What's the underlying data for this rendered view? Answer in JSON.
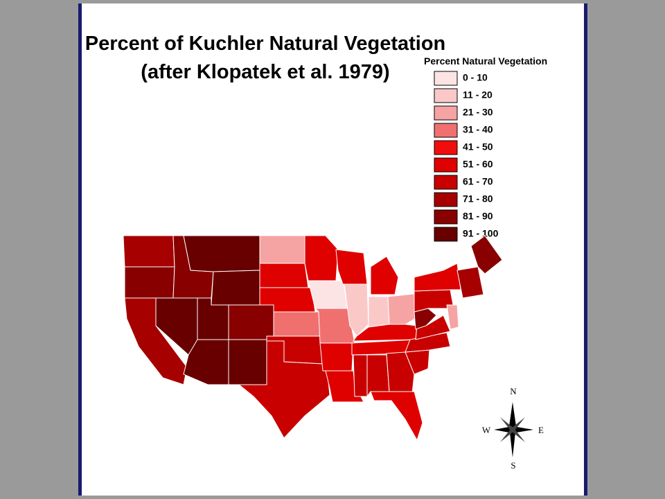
{
  "title": {
    "line1": "Percent of Kuchler Natural Vegetation",
    "line2": "(after Klopatek et al. 1979)"
  },
  "legend": {
    "title": "Percent Natural Vegetation",
    "items": [
      {
        "label": "0 - 10",
        "color": "#fde4e4"
      },
      {
        "label": "11 - 20",
        "color": "#fbc8c8"
      },
      {
        "label": "21 - 30",
        "color": "#f6a3a3"
      },
      {
        "label": "31 - 40",
        "color": "#f07070"
      },
      {
        "label": "41 - 50",
        "color": "#f20d0d"
      },
      {
        "label": "51 - 60",
        "color": "#df0000"
      },
      {
        "label": "61 - 70",
        "color": "#c80000"
      },
      {
        "label": "71 - 80",
        "color": "#a60000"
      },
      {
        "label": "81 - 90",
        "color": "#880000"
      },
      {
        "label": "91 - 100",
        "color": "#680000"
      }
    ]
  },
  "compass": {
    "north": "N",
    "south": "S",
    "west": "W",
    "east": "E"
  }
}
